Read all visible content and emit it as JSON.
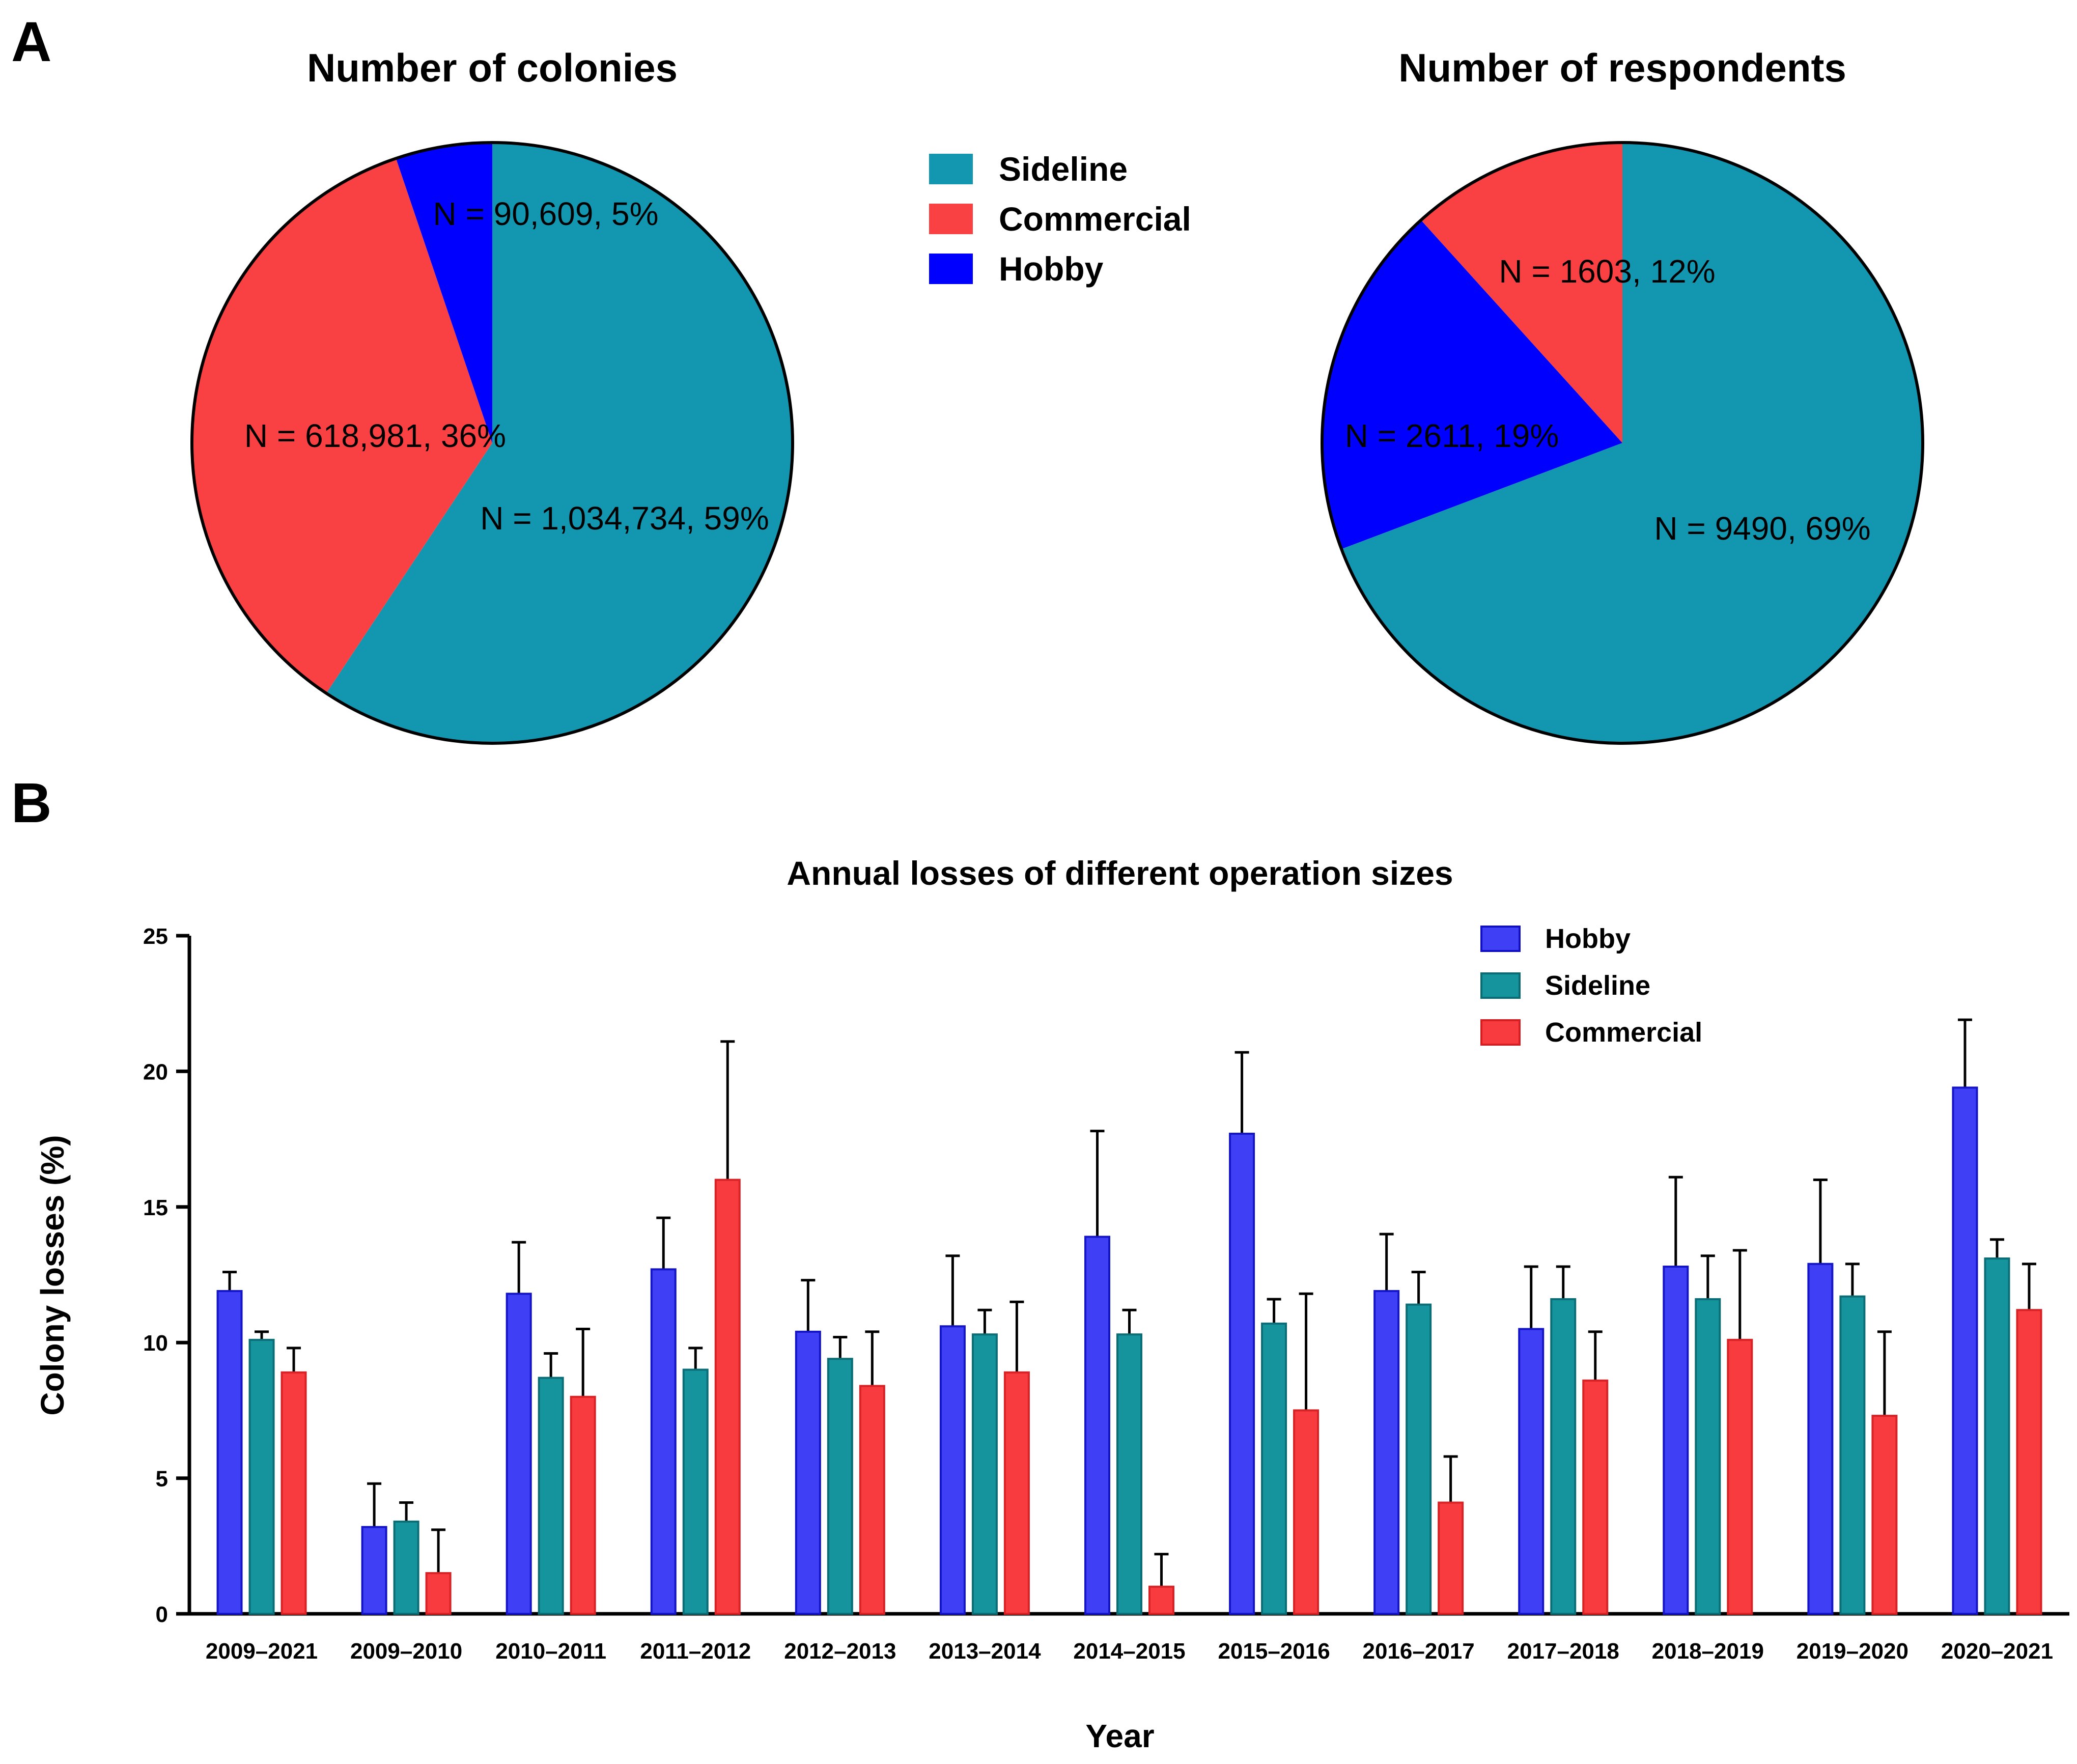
{
  "panels": {
    "a_label": "A",
    "b_label": "B"
  },
  "pie_legend": {
    "items": [
      {
        "name": "Sideline",
        "color": "#1396b0"
      },
      {
        "name": "Commercial",
        "color": "#f94144"
      },
      {
        "name": "Hobby",
        "color": "#0000ff"
      }
    ]
  },
  "chart_data": [
    {
      "type": "pie",
      "title": "Number of colonies",
      "slices": [
        {
          "name": "Sideline",
          "value": 1034734,
          "percent": 59,
          "label": "N = 1,034,734, 59%",
          "color": "#1396b0"
        },
        {
          "name": "Commercial",
          "value": 618981,
          "percent": 36,
          "label": "N = 618,981, 36%",
          "color": "#f94144"
        },
        {
          "name": "Hobby",
          "value": 90609,
          "percent": 5,
          "label": "N = 90,609, 5%",
          "color": "#0000ff"
        }
      ]
    },
    {
      "type": "pie",
      "title": "Number of respondents",
      "slices": [
        {
          "name": "Sideline",
          "value": 9490,
          "percent": 69,
          "label": "N = 9490, 69%",
          "color": "#1396b0"
        },
        {
          "name": "Hobby",
          "value": 2611,
          "percent": 19,
          "label": "N = 2611, 19%",
          "color": "#0000ff"
        },
        {
          "name": "Commercial",
          "value": 1603,
          "percent": 12,
          "label": "N = 1603, 12%",
          "color": "#f94144"
        }
      ]
    },
    {
      "type": "bar",
      "title": "Annual losses of different operation sizes",
      "xlabel": "Year",
      "ylabel": "Colony losses (%)",
      "ylim": [
        0,
        25
      ],
      "yticks": [
        0,
        5,
        10,
        15,
        20,
        25
      ],
      "legend_position": "top-right",
      "categories": [
        "2009–2021",
        "2009–2010",
        "2010–2011",
        "2011–2012",
        "2012–2013",
        "2013–2014",
        "2014–2015",
        "2015–2016",
        "2016–2017",
        "2017–2018",
        "2018–2019",
        "2019–2020",
        "2020–2021"
      ],
      "series": [
        {
          "name": "Hobby",
          "color": "#3f3ff5",
          "values": [
            11.9,
            3.2,
            11.8,
            12.7,
            10.4,
            10.6,
            13.9,
            17.7,
            11.9,
            10.5,
            12.8,
            12.9,
            19.4
          ],
          "error": [
            0.7,
            1.6,
            1.9,
            1.9,
            1.9,
            2.6,
            3.9,
            3.0,
            2.1,
            2.3,
            3.3,
            3.1,
            2.5
          ]
        },
        {
          "name": "Sideline",
          "color": "#16949d",
          "values": [
            10.1,
            3.4,
            8.7,
            9.0,
            9.4,
            10.3,
            10.3,
            10.7,
            11.4,
            11.6,
            11.6,
            11.7,
            13.1
          ],
          "error": [
            0.3,
            0.7,
            0.9,
            0.8,
            0.8,
            0.9,
            0.9,
            0.9,
            1.2,
            1.2,
            1.6,
            1.2,
            0.7
          ]
        },
        {
          "name": "Commercial",
          "color": "#f73b3e",
          "values": [
            8.9,
            1.5,
            8.0,
            16.0,
            8.4,
            8.9,
            1.0,
            7.5,
            4.1,
            8.6,
            10.1,
            7.3,
            11.2
          ],
          "error": [
            0.9,
            1.6,
            2.5,
            5.1,
            2.0,
            2.6,
            1.2,
            4.3,
            1.7,
            1.8,
            3.3,
            3.1,
            1.7
          ]
        }
      ]
    }
  ]
}
